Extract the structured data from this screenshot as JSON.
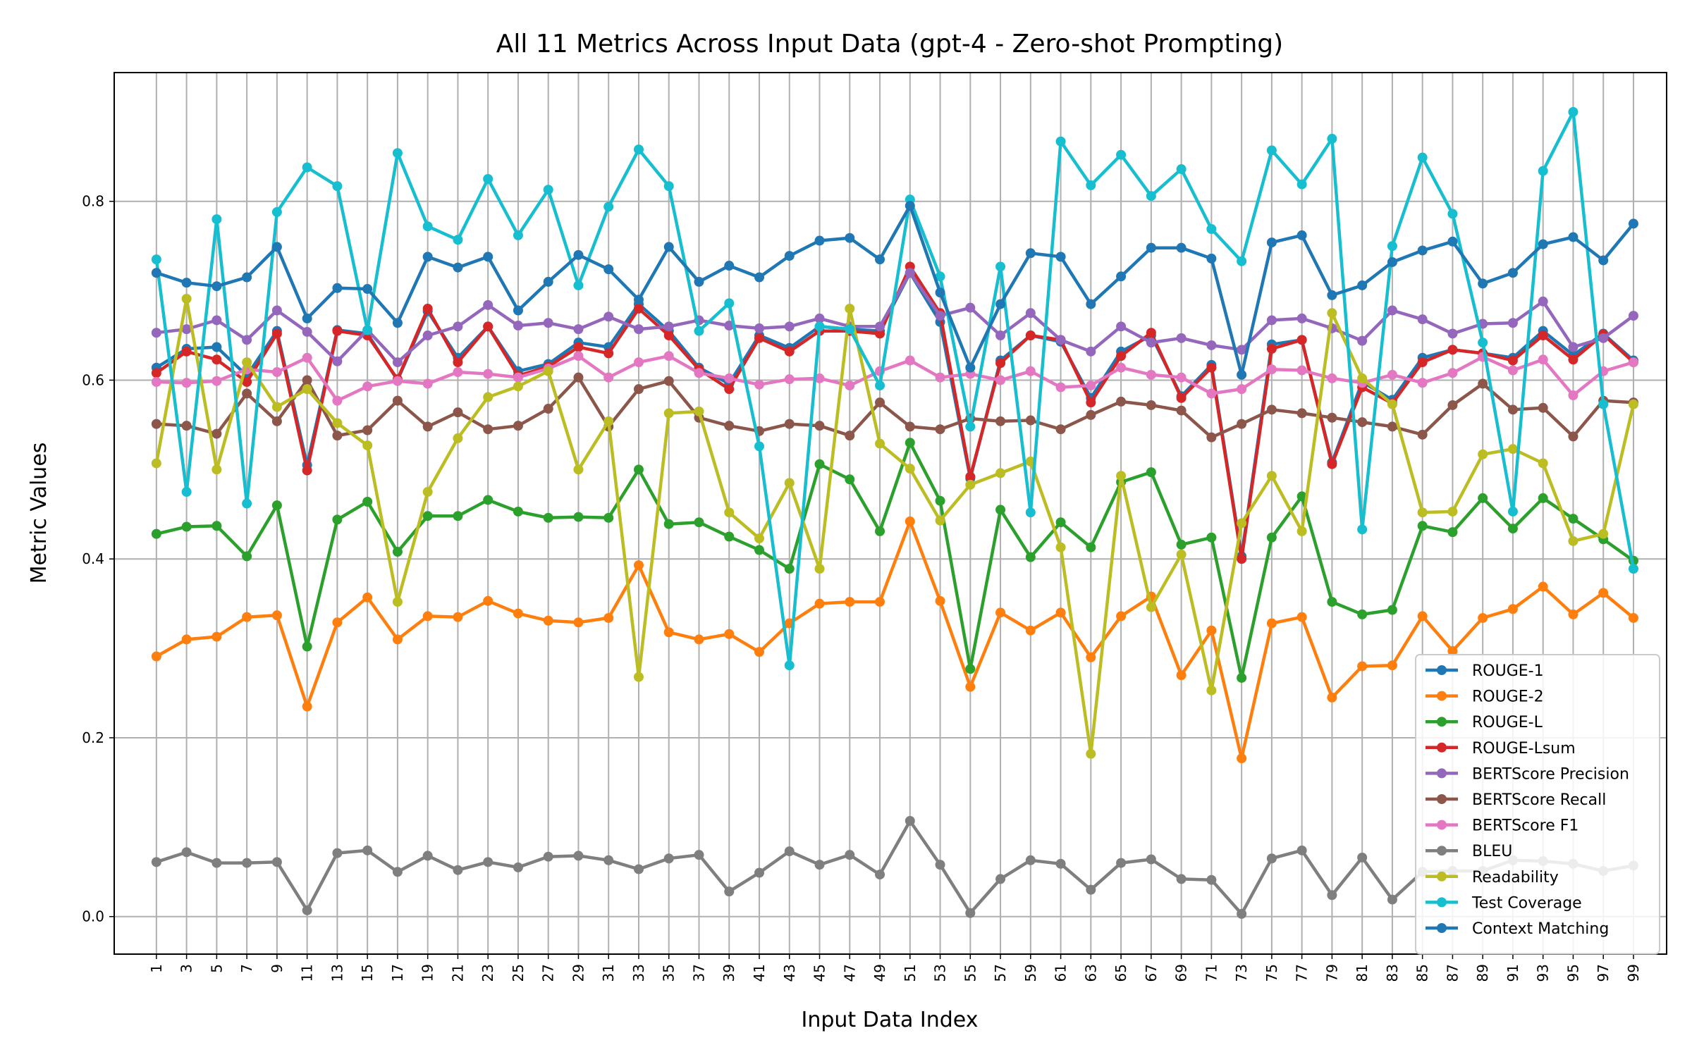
{
  "chart_data": {
    "type": "line",
    "title": "All 11 Metrics Across Input Data (gpt-4 - Zero-shot Prompting)",
    "xlabel": "Input Data Index",
    "ylabel": "Metric Values",
    "x": [
      1,
      3,
      5,
      7,
      9,
      11,
      13,
      15,
      17,
      19,
      21,
      23,
      25,
      27,
      29,
      31,
      33,
      35,
      37,
      39,
      41,
      43,
      45,
      47,
      49,
      51,
      53,
      55,
      57,
      59,
      61,
      63,
      65,
      67,
      69,
      71,
      73,
      75,
      77,
      79,
      81,
      83,
      85,
      87,
      89,
      91,
      93,
      95,
      97,
      99
    ],
    "xlim": [
      -1.8,
      101.2
    ],
    "ylim": [
      -0.042,
      0.944
    ],
    "yticks": [
      0.0,
      0.2,
      0.4,
      0.6,
      0.8
    ],
    "ytick_labels": [
      "0.0",
      "0.2",
      "0.4",
      "0.6",
      "0.8"
    ],
    "grid": true,
    "legend_position": "lower-right",
    "series": [
      {
        "name": "ROUGE-1",
        "color": "#1f77b4",
        "values": [
          0.614,
          0.635,
          0.637,
          0.605,
          0.655,
          0.505,
          0.656,
          0.652,
          0.6,
          0.677,
          0.625,
          0.66,
          0.61,
          0.618,
          0.642,
          0.637,
          0.685,
          0.655,
          0.614,
          0.596,
          0.65,
          0.636,
          0.66,
          0.657,
          0.655,
          0.72,
          0.665,
          0.49,
          0.622,
          0.65,
          0.643,
          0.58,
          0.632,
          0.65,
          0.582,
          0.617,
          0.403,
          0.64,
          0.645,
          0.508,
          0.598,
          0.578,
          0.625,
          0.634,
          0.63,
          0.625,
          0.655,
          0.628,
          0.652,
          0.622
        ]
      },
      {
        "name": "ROUGE-2",
        "color": "#ff7f0e",
        "values": [
          0.291,
          0.31,
          0.313,
          0.335,
          0.337,
          0.235,
          0.329,
          0.357,
          0.31,
          0.336,
          0.335,
          0.353,
          0.339,
          0.331,
          0.329,
          0.334,
          0.393,
          0.318,
          0.31,
          0.316,
          0.296,
          0.328,
          0.35,
          0.352,
          0.352,
          0.442,
          0.353,
          0.257,
          0.34,
          0.32,
          0.34,
          0.29,
          0.336,
          0.358,
          0.27,
          0.32,
          0.177,
          0.328,
          0.335,
          0.245,
          0.28,
          0.281,
          0.336,
          0.297,
          0.334,
          0.344,
          0.369,
          0.338,
          0.362,
          0.334
        ]
      },
      {
        "name": "ROUGE-L",
        "color": "#2ca02c",
        "values": [
          0.428,
          0.436,
          0.437,
          0.403,
          0.46,
          0.302,
          0.444,
          0.464,
          0.408,
          0.448,
          0.448,
          0.466,
          0.453,
          0.446,
          0.447,
          0.446,
          0.5,
          0.439,
          0.441,
          0.425,
          0.41,
          0.389,
          0.506,
          0.489,
          0.431,
          0.53,
          0.465,
          0.277,
          0.455,
          0.402,
          0.441,
          0.413,
          0.486,
          0.497,
          0.416,
          0.424,
          0.267,
          0.424,
          0.47,
          0.352,
          0.338,
          0.343,
          0.437,
          0.43,
          0.468,
          0.434,
          0.468,
          0.445,
          0.422,
          0.398
        ]
      },
      {
        "name": "ROUGE-Lsum",
        "color": "#d62728",
        "values": [
          0.608,
          0.632,
          0.623,
          0.598,
          0.652,
          0.499,
          0.655,
          0.65,
          0.601,
          0.68,
          0.62,
          0.66,
          0.605,
          0.615,
          0.637,
          0.63,
          0.68,
          0.65,
          0.612,
          0.59,
          0.647,
          0.632,
          0.655,
          0.655,
          0.652,
          0.727,
          0.675,
          0.492,
          0.619,
          0.65,
          0.645,
          0.575,
          0.627,
          0.653,
          0.58,
          0.614,
          0.4,
          0.635,
          0.645,
          0.506,
          0.592,
          0.574,
          0.62,
          0.634,
          0.63,
          0.622,
          0.65,
          0.623,
          0.651,
          0.62
        ]
      },
      {
        "name": "BERTScore Precision",
        "color": "#9467bd",
        "values": [
          0.653,
          0.657,
          0.667,
          0.645,
          0.678,
          0.654,
          0.621,
          0.656,
          0.62,
          0.65,
          0.66,
          0.684,
          0.661,
          0.664,
          0.657,
          0.671,
          0.657,
          0.66,
          0.667,
          0.661,
          0.658,
          0.66,
          0.669,
          0.66,
          0.66,
          0.72,
          0.672,
          0.681,
          0.65,
          0.675,
          0.645,
          0.632,
          0.66,
          0.642,
          0.647,
          0.639,
          0.634,
          0.667,
          0.669,
          0.658,
          0.644,
          0.678,
          0.668,
          0.652,
          0.663,
          0.664,
          0.688,
          0.637,
          0.647,
          0.672
        ]
      },
      {
        "name": "BERTScore Recall",
        "color": "#8c564b",
        "values": [
          0.551,
          0.549,
          0.54,
          0.585,
          0.554,
          0.6,
          0.538,
          0.544,
          0.577,
          0.548,
          0.564,
          0.545,
          0.549,
          0.568,
          0.603,
          0.548,
          0.59,
          0.599,
          0.558,
          0.549,
          0.543,
          0.551,
          0.549,
          0.538,
          0.575,
          0.548,
          0.545,
          0.557,
          0.554,
          0.555,
          0.545,
          0.561,
          0.576,
          0.572,
          0.566,
          0.536,
          0.551,
          0.567,
          0.563,
          0.558,
          0.553,
          0.548,
          0.539,
          0.572,
          0.596,
          0.567,
          0.569,
          0.537,
          0.577,
          0.575
        ]
      },
      {
        "name": "BERTScore F1",
        "color": "#e377c2",
        "values": [
          0.598,
          0.597,
          0.599,
          0.612,
          0.609,
          0.625,
          0.577,
          0.593,
          0.599,
          0.596,
          0.609,
          0.607,
          0.603,
          0.613,
          0.627,
          0.603,
          0.62,
          0.627,
          0.608,
          0.602,
          0.595,
          0.601,
          0.602,
          0.594,
          0.61,
          0.622,
          0.603,
          0.607,
          0.6,
          0.61,
          0.592,
          0.594,
          0.614,
          0.606,
          0.603,
          0.585,
          0.59,
          0.612,
          0.611,
          0.602,
          0.597,
          0.606,
          0.597,
          0.608,
          0.626,
          0.611,
          0.623,
          0.583,
          0.61,
          0.62
        ]
      },
      {
        "name": "BLEU",
        "color": "#7f7f7f",
        "values": [
          0.061,
          0.072,
          0.06,
          0.06,
          0.061,
          0.007,
          0.071,
          0.074,
          0.05,
          0.068,
          0.052,
          0.061,
          0.055,
          0.067,
          0.068,
          0.063,
          0.053,
          0.065,
          0.069,
          0.028,
          0.049,
          0.073,
          0.058,
          0.069,
          0.047,
          0.107,
          0.058,
          0.004,
          0.042,
          0.063,
          0.059,
          0.03,
          0.06,
          0.064,
          0.042,
          0.041,
          0.003,
          0.065,
          0.074,
          0.024,
          0.066,
          0.019,
          0.05,
          0.051,
          0.051,
          0.063,
          0.062,
          0.059,
          0.051,
          0.057
        ]
      },
      {
        "name": "Readability",
        "color": "#bcbd22",
        "values": [
          0.507,
          0.691,
          0.5,
          0.62,
          0.57,
          0.59,
          0.552,
          0.527,
          0.352,
          0.475,
          0.535,
          0.581,
          0.593,
          0.61,
          0.5,
          0.554,
          0.268,
          0.563,
          0.565,
          0.452,
          0.423,
          0.485,
          0.389,
          0.68,
          0.529,
          0.501,
          0.443,
          0.483,
          0.496,
          0.509,
          0.413,
          0.182,
          0.493,
          0.346,
          0.405,
          0.253,
          0.44,
          0.493,
          0.431,
          0.675,
          0.602,
          0.573,
          0.452,
          0.453,
          0.517,
          0.523,
          0.507,
          0.42,
          0.428,
          0.573
        ]
      },
      {
        "name": "Test Coverage",
        "color": "#17becf",
        "values": [
          0.735,
          0.475,
          0.78,
          0.462,
          0.788,
          0.838,
          0.817,
          0.656,
          0.854,
          0.772,
          0.757,
          0.825,
          0.762,
          0.813,
          0.706,
          0.794,
          0.858,
          0.817,
          0.655,
          0.686,
          0.526,
          0.281,
          0.66,
          0.657,
          0.594,
          0.802,
          0.716,
          0.548,
          0.727,
          0.452,
          0.867,
          0.818,
          0.852,
          0.806,
          0.836,
          0.769,
          0.733,
          0.857,
          0.819,
          0.87,
          0.433,
          0.75,
          0.849,
          0.786,
          0.642,
          0.453,
          0.834,
          0.9,
          0.573,
          0.389
        ]
      },
      {
        "name": "Context Matching",
        "color": "#1f77b4",
        "values": [
          0.72,
          0.709,
          0.705,
          0.715,
          0.749,
          0.669,
          0.703,
          0.702,
          0.664,
          0.738,
          0.726,
          0.738,
          0.678,
          0.71,
          0.74,
          0.724,
          0.69,
          0.749,
          0.71,
          0.728,
          0.715,
          0.739,
          0.756,
          0.759,
          0.735,
          0.795,
          0.698,
          0.614,
          0.685,
          0.742,
          0.738,
          0.685,
          0.716,
          0.748,
          0.748,
          0.736,
          0.606,
          0.754,
          0.762,
          0.695,
          0.706,
          0.732,
          0.745,
          0.755,
          0.708,
          0.72,
          0.752,
          0.76,
          0.734,
          0.775
        ]
      }
    ]
  }
}
